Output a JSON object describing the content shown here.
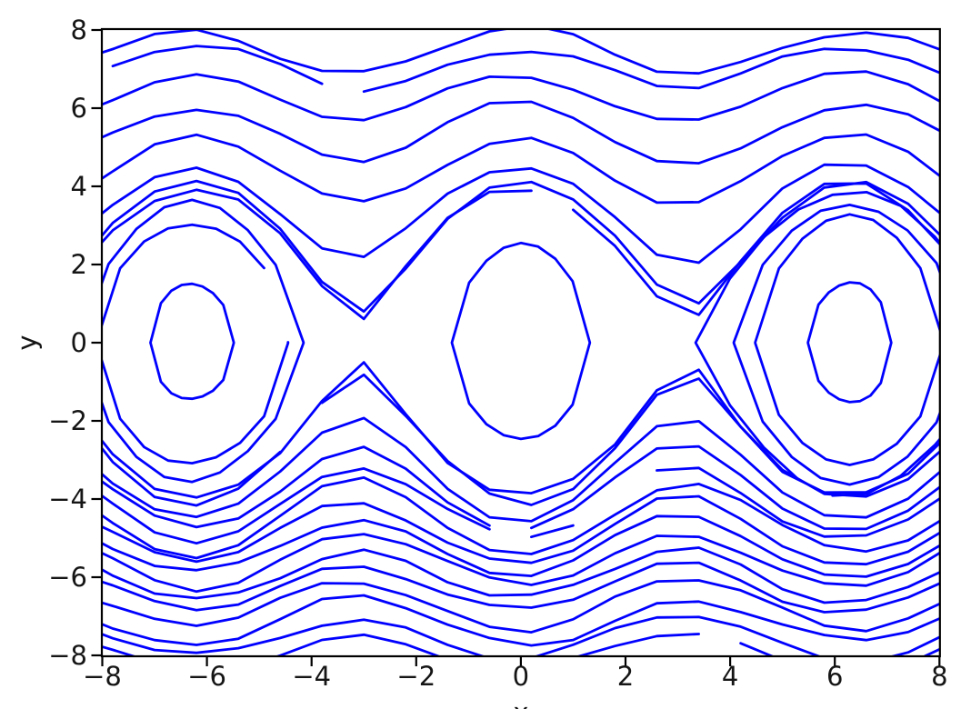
{
  "figure": {
    "background": "#ffffff",
    "axis_color": "#000000",
    "text_color": "#151515"
  },
  "chart_data": {
    "type": "contour",
    "title": "",
    "xlabel": "x",
    "ylabel": "y",
    "xlim": [
      -8,
      8
    ],
    "ylim": [
      -8,
      8
    ],
    "grid": false,
    "legend": "none",
    "x_ticks": [
      -8,
      -6,
      -4,
      -2,
      0,
      2,
      4,
      6,
      8
    ],
    "x_tick_labels": [
      "−8",
      "−6",
      "−4",
      "−2",
      "0",
      "2",
      "4",
      "6",
      "8"
    ],
    "y_ticks": [
      -8,
      -6,
      -4,
      -2,
      0,
      2,
      4,
      6,
      8
    ],
    "y_tick_labels": [
      "−8",
      "−6",
      "−4",
      "−2",
      "0",
      "2",
      "4",
      "6",
      "8"
    ],
    "function": "H(x, y) = y^2/8 - cos(x)  (pendulum-energy contour lines)",
    "line_color": "#0000ff",
    "line_width": 2.8,
    "sample_step": 0.8,
    "open_levels_top": [
      1.03,
      1.1,
      1.55,
      2.5,
      3.65,
      4.95,
      6.2,
      7.0
    ],
    "open_levels_bottom": [
      1.02,
      1.08,
      1.5,
      1.85,
      2.2,
      2.6,
      3.0,
      3.45,
      3.9,
      4.45,
      4.95,
      5.65,
      6.4,
      7.15,
      7.9
    ],
    "wells": [
      {
        "center": -6.2832,
        "levels": [
          -0.7,
          0.26,
          0.53
        ]
      },
      {
        "center": 0.0,
        "levels": [
          -0.25
        ]
      },
      {
        "center": 6.2832,
        "levels": [
          -0.7,
          0.23,
          0.6,
          0.98
        ]
      }
    ],
    "noise": {
      "amplitude": 0.16,
      "seed": 11
    },
    "gaps": {
      "probability": 0.02,
      "seed": 29
    }
  }
}
